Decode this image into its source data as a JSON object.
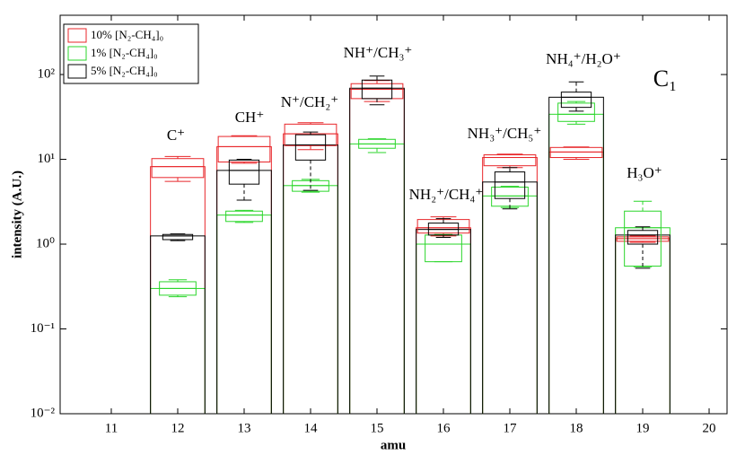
{
  "chart_data": {
    "type": "bar",
    "y_label": "intensity (A.U.)",
    "x_label": "amu",
    "panel_label": "C₁",
    "log_scale": true,
    "legend_position": "upper left",
    "x": [
      12,
      13,
      14,
      15,
      16,
      17,
      18,
      19
    ],
    "xlim": [
      10.23,
      20.27
    ],
    "xticks": [
      11,
      12,
      13,
      14,
      15,
      16,
      17,
      18,
      19,
      20
    ],
    "ylim": [
      0.01,
      500
    ],
    "yticks": [
      {
        "value": 0.01,
        "label": "10⁻²"
      },
      {
        "value": 0.1,
        "label": "10⁻¹"
      },
      {
        "value": 1,
        "label": "10⁰"
      },
      {
        "value": 10,
        "label": "10¹"
      },
      {
        "value": 100,
        "label": "10²"
      }
    ],
    "annotations": [
      "C⁺",
      "CH⁺",
      "N⁺/CH₂⁺",
      "NH⁺/CH₃⁺",
      "NH₂⁺/CH₄⁺",
      "NH₃⁺/CH₅⁺",
      "NH₄⁺/H₂O⁺",
      "H₃O⁺"
    ],
    "series": [
      {
        "name": "10% [N₂-CH₄]₀",
        "color": "#e8262a",
        "values": [
          8.2,
          14.1,
          20,
          67,
          1.56,
          10.5,
          12.2,
          1.16
        ],
        "q1": [
          6.1,
          9.3,
          14.5,
          52,
          1.35,
          8.4,
          10.5,
          1.08
        ],
        "q3": [
          10.2,
          18.6,
          26,
          78,
          1.95,
          11.3,
          13.8,
          1.22
        ],
        "whisker_low": [
          5.5,
          9,
          13,
          48,
          1.25,
          8,
          10,
          1.05
        ],
        "whisker_high": [
          10.8,
          19,
          27,
          85,
          2.1,
          11.5,
          14,
          1.25
        ]
      },
      {
        "name": "1% [N₂-CH₄]₀",
        "color": "#2bd62b",
        "values": [
          0.3,
          2.2,
          4.9,
          15.2,
          1.0,
          3.7,
          34,
          1.56
        ],
        "q1": [
          0.25,
          1.85,
          4.2,
          13.5,
          0.62,
          2.8,
          28,
          0.55
        ],
        "q3": [
          0.36,
          2.45,
          5.6,
          17.2,
          1.28,
          4.7,
          46,
          2.45
        ],
        "whisker_low": [
          0.24,
          1.8,
          4.1,
          12,
          0.62,
          2.7,
          26,
          0.54
        ],
        "whisker_high": [
          0.38,
          2.5,
          5.8,
          17.5,
          1.3,
          4.8,
          48,
          3.2
        ]
      },
      {
        "name": "5% [N₂-CH₄]₀",
        "color": "#000000",
        "values": [
          1.25,
          7.4,
          14.8,
          69,
          1.49,
          5.4,
          54,
          1.28
        ],
        "q1": [
          1.13,
          5.1,
          9.8,
          52,
          1.28,
          3.45,
          41,
          1.0
        ],
        "q3": [
          1.3,
          9.8,
          19.5,
          86,
          1.77,
          7.1,
          62,
          1.45
        ],
        "whisker_low": [
          1.1,
          3.3,
          4.3,
          44,
          1.2,
          2.6,
          37,
          0.52
        ],
        "whisker_high": [
          1.32,
          10,
          21,
          96,
          2.0,
          8,
          82,
          1.6
        ]
      }
    ]
  }
}
